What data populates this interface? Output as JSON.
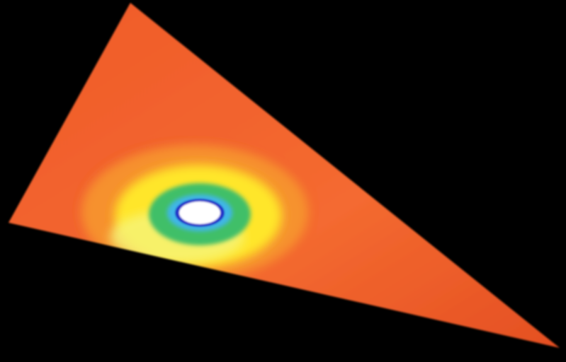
{
  "image": {
    "background_color": "#000000",
    "subject": "triangular-heat-map",
    "colors": {
      "field": "#f05a2a",
      "field_light": "#f46a30",
      "field_shadow": "#e44f22",
      "band_orange": "#f7a02e",
      "band_yellow": "#ffe62c",
      "band_pale_yellow": "#f6f47a",
      "band_green": "#3fbf68",
      "band_cyan": "#3fb6e8",
      "band_blue": "#2230c8",
      "core_white": "#ffffff"
    }
  }
}
